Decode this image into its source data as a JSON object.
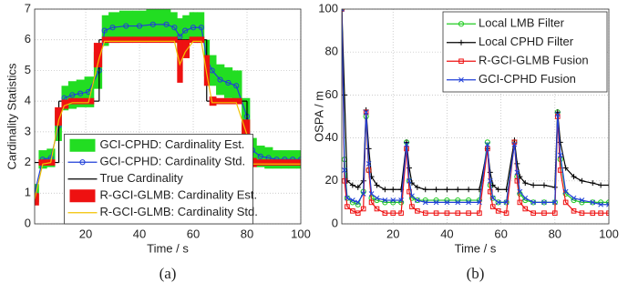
{
  "chart_data": [
    {
      "type": "line",
      "caption": "(a)",
      "x_label": "Time / s",
      "y_label": "Cardinality Statistics",
      "xlim": [
        1,
        100
      ],
      "ylim": [
        0,
        7
      ],
      "xticks": [
        20,
        40,
        60,
        80,
        100
      ],
      "yticks": [
        0,
        1,
        2,
        3,
        4,
        5,
        6,
        7
      ],
      "grid": true,
      "legend": "lower center",
      "x": [
        1,
        4,
        7,
        10,
        12,
        15,
        18,
        21,
        25,
        27,
        30,
        35,
        40,
        45,
        50,
        53,
        55,
        57,
        60,
        63,
        65,
        67,
        70,
        73,
        76,
        80,
        82,
        85,
        88,
        91,
        94,
        97,
        100
      ],
      "series": [
        {
          "name": "GCI-CPHD: Cardinality Est.",
          "color": "#22dd22",
          "kind": "band",
          "marker": "none",
          "values": [
            1.0,
            2.1,
            2.15,
            3.2,
            4.1,
            4.2,
            4.25,
            4.3,
            5.0,
            6.3,
            6.4,
            6.45,
            6.45,
            6.5,
            6.5,
            6.4,
            6.1,
            6.3,
            6.4,
            6.4,
            5.4,
            5.0,
            4.7,
            4.6,
            4.5,
            3.5,
            2.4,
            2.2,
            2.15,
            2.1,
            2.1,
            2.1,
            2.1
          ],
          "errors": [
            0.3,
            0.3,
            0.3,
            0.5,
            0.4,
            0.45,
            0.45,
            0.5,
            0.6,
            0.5,
            0.5,
            0.5,
            0.5,
            0.5,
            0.5,
            0.5,
            0.6,
            0.5,
            0.5,
            0.5,
            0.6,
            0.5,
            0.5,
            0.5,
            0.5,
            0.6,
            0.4,
            0.35,
            0.35,
            0.3,
            0.3,
            0.3,
            0.3
          ]
        },
        {
          "name": "GCI-CPHD: Cardinality Std.",
          "color": "#1f3fd8",
          "kind": "line",
          "marker": "circle",
          "values": [
            1.0,
            2.1,
            2.15,
            3.2,
            4.1,
            4.2,
            4.25,
            4.3,
            5.0,
            6.3,
            6.4,
            6.45,
            6.45,
            6.5,
            6.5,
            6.4,
            6.1,
            6.3,
            6.4,
            6.4,
            5.4,
            5.0,
            4.7,
            4.6,
            4.5,
            3.5,
            2.4,
            2.2,
            2.15,
            2.1,
            2.1,
            2.1,
            2.1
          ]
        },
        {
          "name": "True Cardinality",
          "color": "#000000",
          "kind": "step",
          "marker": "none",
          "values": [
            2,
            2,
            2,
            4,
            4,
            4,
            4,
            4,
            6,
            6,
            6,
            6,
            6,
            6,
            6,
            6,
            6,
            6,
            6,
            6,
            4,
            4,
            4,
            4,
            4,
            2,
            2,
            2,
            2,
            2,
            2,
            2,
            2
          ]
        },
        {
          "name": "R-GCI-GLMB: Cardinality Est.",
          "color": "#ee1111",
          "kind": "band",
          "marker": "none",
          "values": [
            0.8,
            2.0,
            2.0,
            3.5,
            3.9,
            4.0,
            4.0,
            4.0,
            5.5,
            6.0,
            6.0,
            6.0,
            6.0,
            6.0,
            6.0,
            6.0,
            5.3,
            5.7,
            6.0,
            6.0,
            5.0,
            4.0,
            4.0,
            4.0,
            4.0,
            3.0,
            2.0,
            2.0,
            2.0,
            2.0,
            2.0,
            2.0,
            2.0
          ],
          "errors": [
            0.2,
            0.1,
            0.1,
            0.3,
            0.15,
            0.1,
            0.1,
            0.1,
            0.4,
            0.1,
            0.1,
            0.1,
            0.1,
            0.1,
            0.1,
            0.1,
            0.7,
            0.3,
            0.1,
            0.1,
            0.5,
            0.15,
            0.1,
            0.1,
            0.1,
            0.4,
            0.15,
            0.1,
            0.1,
            0.1,
            0.1,
            0.1,
            0.1
          ]
        },
        {
          "name": "R-GCI-GLMB: Cardinality Std.",
          "color": "#f2c200",
          "kind": "line",
          "marker": "none",
          "values": [
            0.8,
            1.95,
            2.0,
            3.4,
            3.85,
            3.95,
            3.95,
            3.95,
            5.4,
            5.95,
            5.95,
            5.95,
            5.95,
            5.95,
            5.95,
            5.95,
            5.2,
            5.6,
            5.95,
            5.95,
            4.9,
            3.95,
            3.95,
            3.95,
            3.95,
            2.9,
            1.95,
            1.95,
            1.95,
            1.95,
            1.95,
            1.95,
            1.95
          ]
        }
      ]
    },
    {
      "type": "line",
      "caption": "(b)",
      "x_label": "Time / s",
      "y_label": "OSPA / m",
      "xlim": [
        1,
        100
      ],
      "ylim": [
        0,
        100
      ],
      "xticks": [
        20,
        40,
        60,
        80,
        100
      ],
      "yticks": [
        0,
        20,
        40,
        60,
        80,
        100
      ],
      "grid": true,
      "legend": "upper right",
      "x": [
        1,
        2,
        3,
        5,
        7,
        9,
        10,
        11,
        12,
        14,
        17,
        20,
        23,
        25,
        26,
        27,
        29,
        32,
        36,
        40,
        44,
        48,
        52,
        55,
        56,
        57,
        59,
        62,
        65,
        66,
        67,
        69,
        72,
        76,
        80,
        81,
        82,
        84,
        87,
        90,
        94,
        97,
        100
      ],
      "series": [
        {
          "name": "Local LMB Filter",
          "color": "#22cc22",
          "kind": "line",
          "marker": "circle",
          "values": [
            100,
            30,
            12,
            10,
            9,
            15,
            50,
            25,
            12,
            11,
            10,
            10,
            10,
            38,
            20,
            12,
            11,
            11,
            11,
            11,
            11,
            11,
            11,
            38,
            18,
            12,
            10,
            10,
            38,
            22,
            14,
            11,
            10,
            10,
            10,
            52,
            30,
            14,
            11,
            10,
            10,
            10,
            10
          ]
        },
        {
          "name": "Local CPHD Filter",
          "color": "#000000",
          "kind": "line",
          "marker": "plus",
          "values": [
            100,
            60,
            20,
            18,
            17,
            20,
            53,
            35,
            22,
            18,
            16,
            16,
            16,
            38,
            26,
            19,
            17,
            16,
            16,
            16,
            16,
            16,
            16,
            35,
            24,
            18,
            16,
            16,
            39,
            28,
            22,
            19,
            18,
            18,
            17,
            52,
            38,
            26,
            22,
            20,
            19,
            18,
            18
          ]
        },
        {
          "name": "R-GCI-GLMB Fusion",
          "color": "#ee1111",
          "kind": "line",
          "marker": "square",
          "values": [
            100,
            20,
            8,
            6,
            5,
            7,
            52,
            25,
            10,
            7,
            5,
            5,
            5,
            35,
            15,
            8,
            6,
            5,
            5,
            5,
            5,
            5,
            5,
            35,
            15,
            8,
            6,
            5,
            38,
            20,
            10,
            7,
            5,
            5,
            5,
            50,
            25,
            10,
            6,
            5,
            5,
            5,
            5
          ]
        },
        {
          "name": "GCI-CPHD Fusion",
          "color": "#1f3fd8",
          "kind": "line",
          "marker": "x",
          "values": [
            100,
            25,
            12,
            11,
            10,
            14,
            52,
            28,
            14,
            12,
            11,
            11,
            11,
            37,
            20,
            13,
            11,
            10,
            10,
            10,
            10,
            10,
            10,
            37,
            20,
            12,
            10,
            10,
            37,
            24,
            15,
            12,
            10,
            10,
            10,
            51,
            32,
            15,
            12,
            11,
            10,
            9,
            9
          ]
        }
      ]
    }
  ]
}
